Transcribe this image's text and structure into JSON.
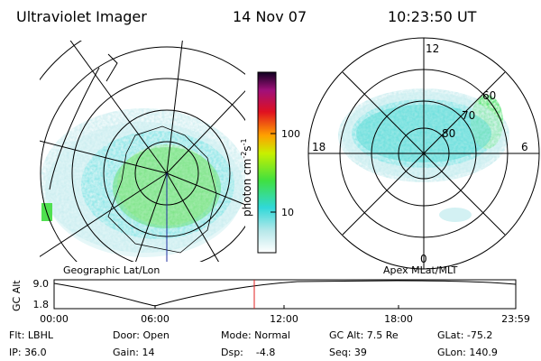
{
  "header": {
    "instrument": "Ultraviolet Imager",
    "date": "14 Nov 07",
    "time": "10:23:50 UT"
  },
  "colorbar": {
    "label": [
      "photon cm",
      "-2",
      "s",
      "-1"
    ],
    "ticks": [
      "100",
      "10"
    ]
  },
  "polar_plot": {
    "mlt_labels": [
      "12",
      "18",
      "6",
      "0"
    ],
    "mlat_labels": [
      "60",
      "70",
      "80"
    ]
  },
  "panel_labels": {
    "left": "Geographic Lat/Lon",
    "right": "Apex MLat/MLT"
  },
  "altitude": {
    "axis_label": "GC Alt",
    "yticks": [
      "9.0",
      "1.8"
    ],
    "xticks": [
      "00:00",
      "06:00",
      "12:00",
      "18:00",
      "23:59"
    ]
  },
  "info": [
    [
      "Flt: LBHL",
      "Door: Open",
      "Mode: Normal",
      "GC Alt: 7.5 Re",
      "GLat: -75.2"
    ],
    [
      "IP: 36.0",
      "Gain: 14",
      "Dsp:    -4.8",
      "Seq: 39",
      "GLon: 140.9"
    ]
  ]
}
